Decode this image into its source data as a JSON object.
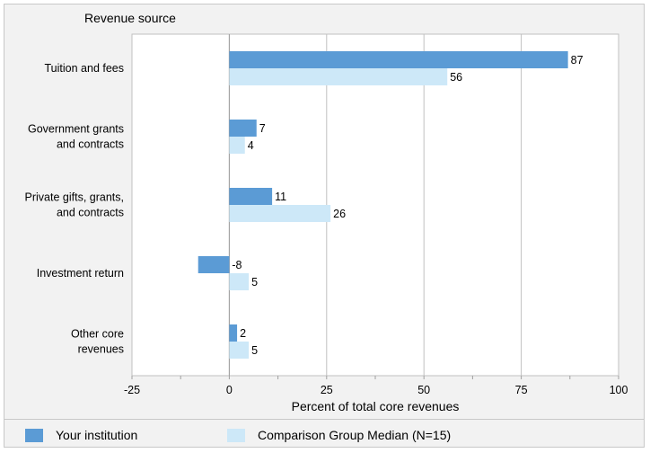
{
  "chart_data": {
    "type": "bar",
    "orientation": "horizontal",
    "y_header": "Revenue source",
    "xlabel": "Percent of total core revenues",
    "xlim": [
      -25,
      100
    ],
    "xticks": [
      "-25",
      "0",
      "25",
      "50",
      "75",
      "100"
    ],
    "grid": true,
    "legend_position": "bottom",
    "categories": [
      [
        "Tuition and fees"
      ],
      [
        "Government grants",
        "and contracts"
      ],
      [
        "Private gifts, grants,",
        "and contracts"
      ],
      [
        "Investment return"
      ],
      [
        "Other core",
        "revenues"
      ]
    ],
    "series": [
      {
        "name": "Your institution",
        "color": "#5b9bd5",
        "values": [
          87,
          7,
          11,
          -8,
          2
        ]
      },
      {
        "name": "Comparison Group Median (N=15)",
        "color": "#cde8f8",
        "values": [
          56,
          4,
          26,
          5,
          5
        ]
      }
    ]
  }
}
